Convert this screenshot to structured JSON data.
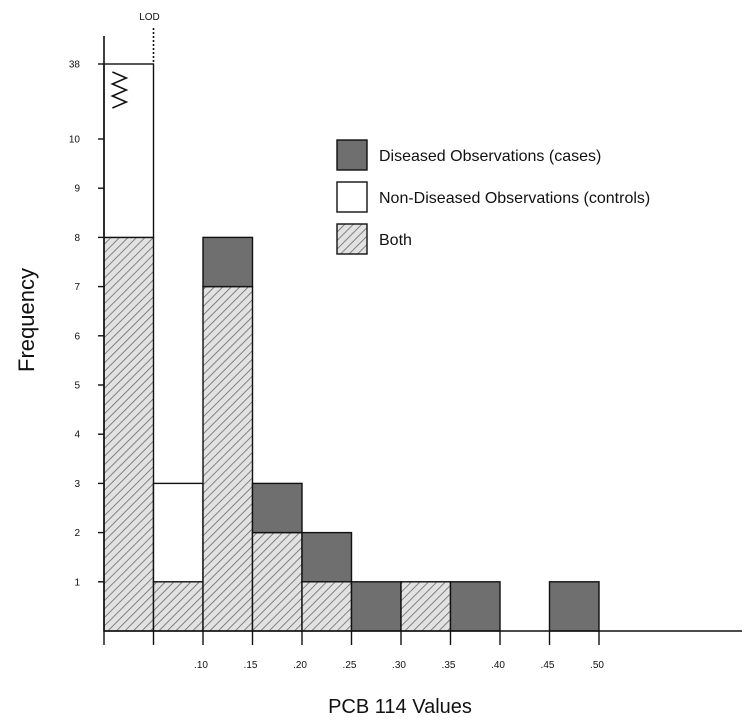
{
  "chart_data": {
    "type": "bar",
    "subtype": "stacked-histogram",
    "title": "",
    "xlabel": "PCB 114 Values",
    "ylabel": "Frequency",
    "x_tick_labels": [
      ".10",
      ".15",
      ".20",
      ".25",
      ".30",
      ".35",
      ".40",
      ".45",
      ".50"
    ],
    "x_tick_values": [
      0.1,
      0.15,
      0.2,
      0.25,
      0.3,
      0.35,
      0.4,
      0.45,
      0.5
    ],
    "y_tick_labels": [
      "1",
      "2",
      "3",
      "4",
      "5",
      "6",
      "7",
      "8",
      "9",
      "10",
      "38"
    ],
    "y_axis_break": "between 10 and 38",
    "grid": false,
    "legend_position": "top-right",
    "annotation": {
      "text": "LOD",
      "x": 0.05
    },
    "series": [
      {
        "name": "Both",
        "pattern": "diagonal-hatch",
        "color": "#bdbdbd"
      },
      {
        "name": "Diseased Observations (cases)",
        "color": "#6f6f6f"
      },
      {
        "name": "Non-Diseased Observations (controls)",
        "color": "#ffffff"
      }
    ],
    "bins": [
      {
        "x0": 0.0,
        "x1": 0.05,
        "both": 8,
        "cases": 0,
        "controls": 30,
        "total": 38
      },
      {
        "x0": 0.05,
        "x1": 0.1,
        "both": 1,
        "cases": 0,
        "controls": 2,
        "total": 3
      },
      {
        "x0": 0.1,
        "x1": 0.15,
        "both": 7,
        "cases": 1,
        "controls": 0,
        "total": 8
      },
      {
        "x0": 0.15,
        "x1": 0.2,
        "both": 2,
        "cases": 1,
        "controls": 0,
        "total": 3
      },
      {
        "x0": 0.2,
        "x1": 0.25,
        "both": 1,
        "cases": 1,
        "controls": 0,
        "total": 2
      },
      {
        "x0": 0.25,
        "x1": 0.3,
        "both": 0,
        "cases": 1,
        "controls": 0,
        "total": 1
      },
      {
        "x0": 0.3,
        "x1": 0.35,
        "both": 1,
        "cases": 0,
        "controls": 0,
        "total": 1
      },
      {
        "x0": 0.35,
        "x1": 0.4,
        "both": 0,
        "cases": 1,
        "controls": 0,
        "total": 1
      },
      {
        "x0": 0.4,
        "x1": 0.45,
        "both": 0,
        "cases": 0,
        "controls": 0,
        "total": 0
      },
      {
        "x0": 0.45,
        "x1": 0.5,
        "both": 0,
        "cases": 1,
        "controls": 0,
        "total": 1
      }
    ]
  }
}
